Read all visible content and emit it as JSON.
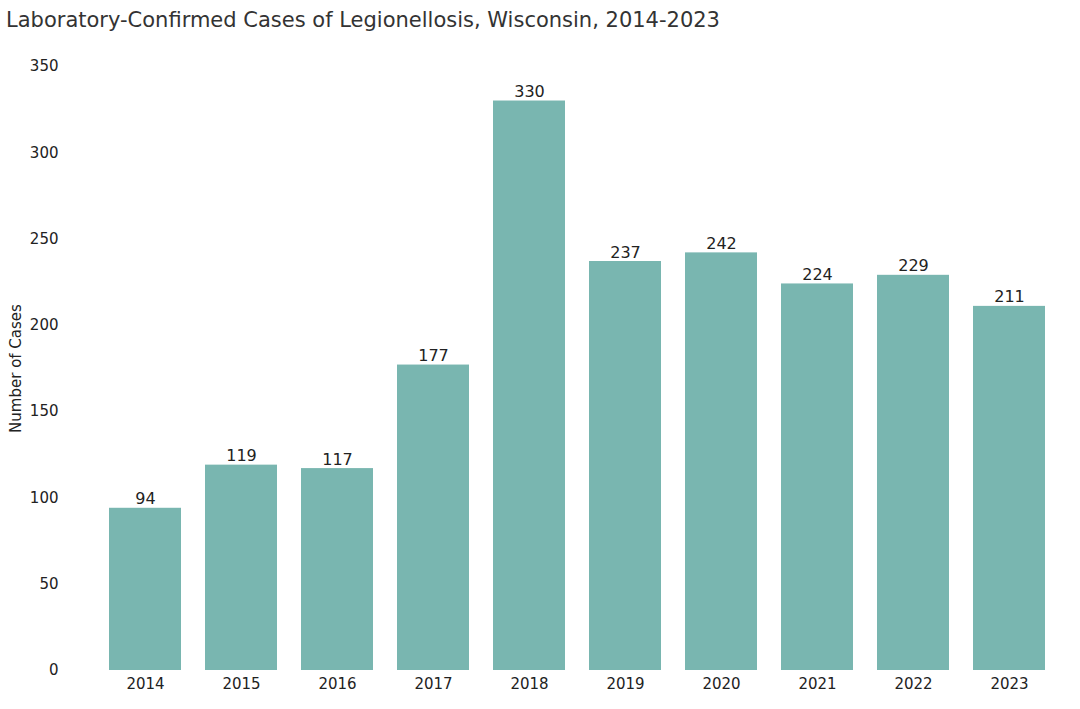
{
  "chart_data": {
    "type": "bar",
    "title": "Laboratory-Confirmed Cases of Legionellosis, Wisconsin, 2014-2023",
    "categories": [
      "2014",
      "2015",
      "2016",
      "2017",
      "2018",
      "2019",
      "2020",
      "2021",
      "2022",
      "2023"
    ],
    "values": [
      94,
      119,
      117,
      177,
      330,
      237,
      242,
      224,
      229,
      211
    ],
    "color": "#79b6b0",
    "y_label": "Number of Cases",
    "ylim": [
      0,
      350
    ],
    "yticks": [
      0,
      50,
      100,
      150,
      200,
      250,
      300,
      350
    ],
    "grid": false,
    "data_labels": true
  }
}
